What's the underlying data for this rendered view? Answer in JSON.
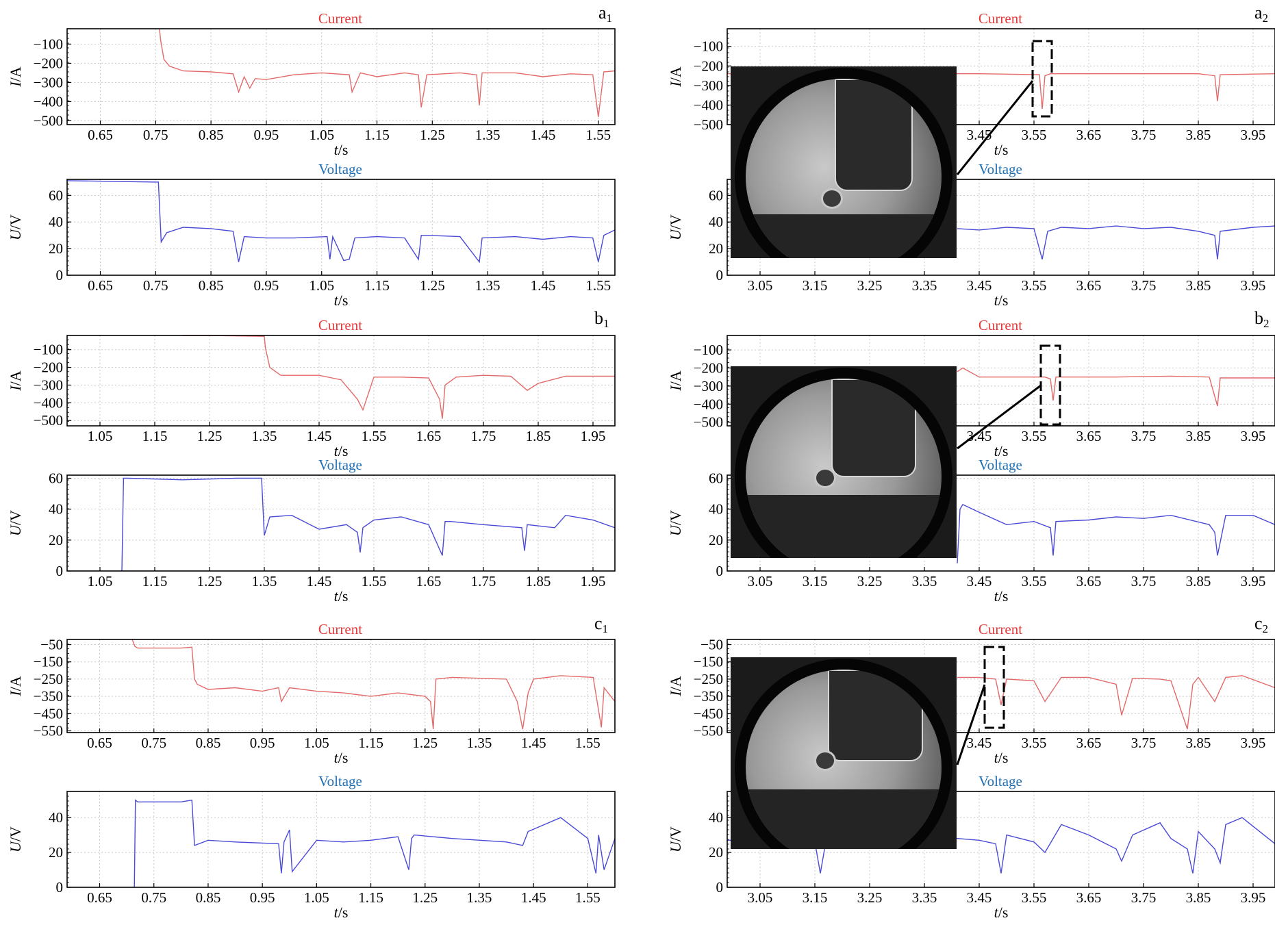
{
  "colors": {
    "current": "#e23a3a",
    "voltage": "#1f6fb4",
    "current_line": "#e46a6a",
    "voltage_line": "#4a4ad8",
    "grid": "#c8c8c8"
  },
  "labels": {
    "current_title": "Current",
    "voltage_title": "Voltage",
    "ylabel_current_var": "I",
    "ylabel_current_unit": "/A",
    "ylabel_voltage_var": "U",
    "ylabel_voltage_unit": "/V",
    "xlabel_var": "t",
    "xlabel_unit": "/s"
  },
  "panel_labels": {
    "a1": "a",
    "a2": "a",
    "b1": "b",
    "b2": "b",
    "c1": "c",
    "c2": "c",
    "sub1": "1",
    "sub2": "2"
  },
  "chart_data": [
    {
      "id": "a1-current",
      "type": "line",
      "title": "Current",
      "xlabel": "t/s",
      "ylabel": "I/A",
      "xlim": [
        0.59,
        1.58
      ],
      "ylim": [
        -520,
        -20
      ],
      "xticks": [
        0.65,
        0.75,
        0.85,
        0.95,
        1.05,
        1.15,
        1.25,
        1.35,
        1.45,
        1.55
      ],
      "yticks": [
        -100,
        -200,
        -300,
        -400,
        -500
      ],
      "series": [
        {
          "x": [
            0.757,
            0.759,
            0.765,
            0.775,
            0.8,
            0.85,
            0.89,
            0.9,
            0.91,
            0.92,
            0.93,
            0.95,
            1.0,
            1.05,
            1.1,
            1.105,
            1.12,
            1.15,
            1.2,
            1.225,
            1.23,
            1.24,
            1.3,
            1.33,
            1.335,
            1.34,
            1.4,
            1.45,
            1.5,
            1.54,
            1.55,
            1.56,
            1.58
          ],
          "y": [
            -20,
            -80,
            -180,
            -215,
            -240,
            -245,
            -255,
            -350,
            -270,
            -330,
            -280,
            -285,
            -260,
            -250,
            -260,
            -350,
            -250,
            -270,
            -250,
            -260,
            -430,
            -260,
            -250,
            -260,
            -420,
            -250,
            -250,
            -270,
            -255,
            -260,
            -480,
            -245,
            -240
          ]
        }
      ]
    },
    {
      "id": "a1-voltage",
      "type": "line",
      "title": "Voltage",
      "xlabel": "t/s",
      "ylabel": "U/V",
      "xlim": [
        0.59,
        1.58
      ],
      "ylim": [
        0,
        72
      ],
      "xticks": [
        0.65,
        0.75,
        0.85,
        0.95,
        1.05,
        1.15,
        1.25,
        1.35,
        1.45,
        1.55
      ],
      "yticks": [
        0,
        20,
        40,
        60
      ],
      "series": [
        {
          "x": [
            0.59,
            0.75,
            0.755,
            0.76,
            0.77,
            0.8,
            0.85,
            0.89,
            0.9,
            0.91,
            0.95,
            1.0,
            1.06,
            1.065,
            1.07,
            1.09,
            1.1,
            1.11,
            1.15,
            1.2,
            1.225,
            1.23,
            1.24,
            1.3,
            1.335,
            1.34,
            1.4,
            1.45,
            1.5,
            1.54,
            1.55,
            1.56,
            1.58
          ],
          "y": [
            71,
            70,
            70,
            25,
            32,
            36,
            35,
            33,
            10,
            29,
            28,
            28,
            29,
            12,
            29,
            11,
            12,
            28,
            29,
            28,
            12,
            30,
            30,
            29,
            10,
            28,
            29,
            27,
            29,
            28,
            10,
            30,
            34
          ]
        }
      ]
    },
    {
      "id": "a2-current",
      "type": "line",
      "title": "Current",
      "xlabel": "t/s",
      "ylabel": "I/A",
      "xlim": [
        2.99,
        3.99
      ],
      "ylim": [
        -500,
        -10
      ],
      "xticks": [
        3.05,
        3.15,
        3.25,
        3.35,
        3.45,
        3.55,
        3.65,
        3.75,
        3.85,
        3.95
      ],
      "yticks": [
        -100,
        -200,
        -300,
        -400,
        -500
      ],
      "series": [
        {
          "x": [
            2.99,
            3.1,
            3.3,
            3.45,
            3.56,
            3.565,
            3.57,
            3.58,
            3.7,
            3.85,
            3.88,
            3.885,
            3.89,
            3.99
          ],
          "y": [
            -240,
            -240,
            -240,
            -240,
            -245,
            -420,
            -250,
            -240,
            -240,
            -240,
            -250,
            -380,
            -245,
            -240
          ]
        }
      ]
    },
    {
      "id": "a2-voltage",
      "type": "line",
      "title": "Voltage",
      "xlabel": "t/s",
      "ylabel": "U/V",
      "xlim": [
        2.99,
        3.99
      ],
      "ylim": [
        0,
        72
      ],
      "xticks": [
        3.05,
        3.15,
        3.25,
        3.35,
        3.45,
        3.55,
        3.65,
        3.75,
        3.85,
        3.95
      ],
      "yticks": [
        0,
        20,
        40,
        60
      ],
      "series": [
        {
          "x": [
            3.41,
            3.45,
            3.5,
            3.55,
            3.565,
            3.575,
            3.6,
            3.65,
            3.7,
            3.75,
            3.8,
            3.85,
            3.88,
            3.885,
            3.89,
            3.95,
            3.99
          ],
          "y": [
            35,
            34,
            36,
            35,
            12,
            33,
            36,
            35,
            37,
            35,
            36,
            33,
            30,
            12,
            33,
            36,
            37
          ]
        }
      ]
    },
    {
      "id": "b1-current",
      "type": "line",
      "title": "Current",
      "xlabel": "t/s",
      "ylabel": "I/A",
      "xlim": [
        0.99,
        1.99
      ],
      "ylim": [
        -530,
        -20
      ],
      "xticks": [
        1.05,
        1.15,
        1.25,
        1.35,
        1.45,
        1.55,
        1.65,
        1.75,
        1.85,
        1.95
      ],
      "yticks": [
        -100,
        -200,
        -300,
        -400,
        -500
      ],
      "series": [
        {
          "x": [
            1.2,
            1.25,
            1.35,
            1.352,
            1.36,
            1.38,
            1.45,
            1.49,
            1.52,
            1.53,
            1.55,
            1.6,
            1.65,
            1.67,
            1.675,
            1.68,
            1.7,
            1.75,
            1.8,
            1.83,
            1.85,
            1.9,
            1.99
          ],
          "y": [
            -20,
            -20,
            -25,
            -90,
            -200,
            -245,
            -245,
            -270,
            -380,
            -440,
            -255,
            -255,
            -260,
            -380,
            -490,
            -300,
            -255,
            -245,
            -250,
            -330,
            -290,
            -250,
            -250
          ]
        }
      ]
    },
    {
      "id": "b1-voltage",
      "type": "line",
      "title": "Voltage",
      "xlabel": "t/s",
      "ylabel": "U/V",
      "xlim": [
        0.99,
        1.99
      ],
      "ylim": [
        0,
        62
      ],
      "xticks": [
        1.05,
        1.15,
        1.25,
        1.35,
        1.45,
        1.55,
        1.65,
        1.75,
        1.85,
        1.95
      ],
      "yticks": [
        0,
        20,
        40,
        60
      ],
      "series": [
        {
          "x": [
            1.09,
            1.093,
            1.1,
            1.2,
            1.3,
            1.345,
            1.35,
            1.36,
            1.4,
            1.45,
            1.5,
            1.52,
            1.525,
            1.53,
            1.55,
            1.6,
            1.65,
            1.675,
            1.68,
            1.69,
            1.75,
            1.82,
            1.825,
            1.83,
            1.88,
            1.9,
            1.95,
            1.99
          ],
          "y": [
            0,
            60,
            60,
            59,
            60,
            60,
            23,
            35,
            36,
            27,
            30,
            25,
            12,
            28,
            33,
            35,
            30,
            10,
            32,
            32,
            30,
            28,
            13,
            30,
            28,
            36,
            33,
            28
          ]
        }
      ]
    },
    {
      "id": "b2-current",
      "type": "line",
      "title": "Current",
      "xlabel": "t/s",
      "ylabel": "I/A",
      "xlim": [
        2.99,
        3.99
      ],
      "ylim": [
        -520,
        -20
      ],
      "xticks": [
        3.05,
        3.15,
        3.25,
        3.35,
        3.45,
        3.55,
        3.65,
        3.75,
        3.85,
        3.95
      ],
      "yticks": [
        -100,
        -200,
        -300,
        -400,
        -500
      ],
      "series": [
        {
          "x": [
            3.41,
            3.42,
            3.45,
            3.5,
            3.57,
            3.58,
            3.585,
            3.59,
            3.7,
            3.8,
            3.87,
            3.885,
            3.89,
            3.9,
            3.99
          ],
          "y": [
            -220,
            -200,
            -250,
            -250,
            -250,
            -260,
            -380,
            -250,
            -250,
            -245,
            -250,
            -410,
            -255,
            -255,
            -255
          ]
        }
      ]
    },
    {
      "id": "b2-voltage",
      "type": "line",
      "title": "Voltage",
      "xlabel": "t/s",
      "ylabel": "U/V",
      "xlim": [
        2.99,
        3.99
      ],
      "ylim": [
        0,
        62
      ],
      "xticks": [
        3.05,
        3.15,
        3.25,
        3.35,
        3.45,
        3.55,
        3.65,
        3.75,
        3.85,
        3.95
      ],
      "yticks": [
        0,
        20,
        40,
        60
      ],
      "series": [
        {
          "x": [
            3.41,
            3.415,
            3.42,
            3.45,
            3.5,
            3.55,
            3.58,
            3.585,
            3.59,
            3.65,
            3.7,
            3.75,
            3.8,
            3.87,
            3.88,
            3.885,
            3.9,
            3.95,
            3.99
          ],
          "y": [
            5,
            40,
            43,
            38,
            30,
            32,
            28,
            10,
            32,
            33,
            35,
            34,
            36,
            30,
            25,
            10,
            36,
            36,
            30
          ]
        }
      ]
    },
    {
      "id": "c1-current",
      "type": "line",
      "title": "Current",
      "xlabel": "t/s",
      "ylabel": "I/A",
      "xlim": [
        0.59,
        1.6
      ],
      "ylim": [
        -560,
        -20
      ],
      "xticks": [
        0.65,
        0.75,
        0.85,
        0.95,
        1.05,
        1.15,
        1.25,
        1.35,
        1.45,
        1.55
      ],
      "yticks": [
        -50,
        -150,
        -250,
        -350,
        -450,
        -550
      ],
      "series": [
        {
          "x": [
            0.71,
            0.715,
            0.72,
            0.8,
            0.82,
            0.825,
            0.83,
            0.85,
            0.9,
            0.95,
            0.98,
            0.985,
            1.0,
            1.05,
            1.1,
            1.15,
            1.2,
            1.25,
            1.26,
            1.265,
            1.27,
            1.3,
            1.35,
            1.4,
            1.42,
            1.43,
            1.44,
            1.45,
            1.5,
            1.56,
            1.575,
            1.58,
            1.6
          ],
          "y": [
            -20,
            -60,
            -70,
            -70,
            -65,
            -250,
            -280,
            -310,
            -300,
            -320,
            -300,
            -380,
            -300,
            -320,
            -330,
            -350,
            -330,
            -350,
            -380,
            -540,
            -250,
            -240,
            -245,
            -250,
            -380,
            -540,
            -330,
            -250,
            -230,
            -240,
            -530,
            -300,
            -380
          ]
        }
      ]
    },
    {
      "id": "c1-voltage",
      "type": "line",
      "title": "Voltage",
      "xlabel": "t/s",
      "ylabel": "U/V",
      "xlim": [
        0.59,
        1.6
      ],
      "ylim": [
        0,
        55
      ],
      "xticks": [
        0.65,
        0.75,
        0.85,
        0.95,
        1.05,
        1.15,
        1.25,
        1.35,
        1.45,
        1.55
      ],
      "yticks": [
        0,
        20,
        40
      ],
      "series": [
        {
          "x": [
            0.714,
            0.716,
            0.72,
            0.8,
            0.82,
            0.825,
            0.85,
            0.9,
            0.98,
            0.985,
            0.99,
            1.0,
            1.005,
            1.05,
            1.1,
            1.15,
            1.2,
            1.22,
            1.225,
            1.23,
            1.3,
            1.4,
            1.43,
            1.44,
            1.5,
            1.55,
            1.565,
            1.57,
            1.58,
            1.6
          ],
          "y": [
            0,
            50,
            49,
            49,
            50,
            24,
            27,
            26,
            25,
            8,
            26,
            33,
            9,
            27,
            26,
            27,
            29,
            10,
            28,
            30,
            28,
            26,
            24,
            32,
            40,
            28,
            8,
            30,
            10,
            28
          ]
        }
      ]
    },
    {
      "id": "c2-current",
      "type": "line",
      "title": "Current",
      "xlabel": "t/s",
      "ylabel": "I/A",
      "xlim": [
        2.99,
        3.99
      ],
      "ylim": [
        -560,
        -20
      ],
      "xticks": [
        3.05,
        3.15,
        3.25,
        3.35,
        3.45,
        3.55,
        3.65,
        3.75,
        3.85,
        3.95
      ],
      "yticks": [
        -50,
        -150,
        -250,
        -350,
        -450,
        -550
      ],
      "series": [
        {
          "x": [
            3.41,
            3.45,
            3.48,
            3.49,
            3.5,
            3.55,
            3.57,
            3.6,
            3.65,
            3.7,
            3.71,
            3.73,
            3.78,
            3.8,
            3.83,
            3.84,
            3.85,
            3.88,
            3.9,
            3.93,
            3.99
          ],
          "y": [
            -240,
            -240,
            -250,
            -400,
            -250,
            -260,
            -380,
            -240,
            -240,
            -280,
            -460,
            -245,
            -250,
            -260,
            -540,
            -280,
            -240,
            -380,
            -240,
            -230,
            -300
          ]
        }
      ]
    },
    {
      "id": "c2-voltage",
      "type": "line",
      "title": "Voltage",
      "xlabel": "t/s",
      "ylabel": "U/V",
      "xlim": [
        2.99,
        3.99
      ],
      "ylim": [
        0,
        55
      ],
      "xticks": [
        3.05,
        3.15,
        3.25,
        3.35,
        3.45,
        3.55,
        3.65,
        3.75,
        3.85,
        3.95
      ],
      "yticks": [
        0,
        20,
        40
      ],
      "series": [
        {
          "x": [
            2.99,
            3.0,
            3.15,
            3.16,
            3.17,
            3.41,
            3.45,
            3.48,
            3.49,
            3.5,
            3.55,
            3.57,
            3.6,
            3.65,
            3.7,
            3.71,
            3.73,
            3.78,
            3.8,
            3.83,
            3.84,
            3.85,
            3.88,
            3.89,
            3.9,
            3.93,
            3.99
          ],
          "y": [
            27,
            27,
            26,
            8,
            26,
            28,
            27,
            25,
            8,
            30,
            26,
            20,
            36,
            30,
            22,
            15,
            30,
            37,
            28,
            22,
            8,
            32,
            22,
            14,
            36,
            40,
            25
          ]
        }
      ]
    }
  ]
}
